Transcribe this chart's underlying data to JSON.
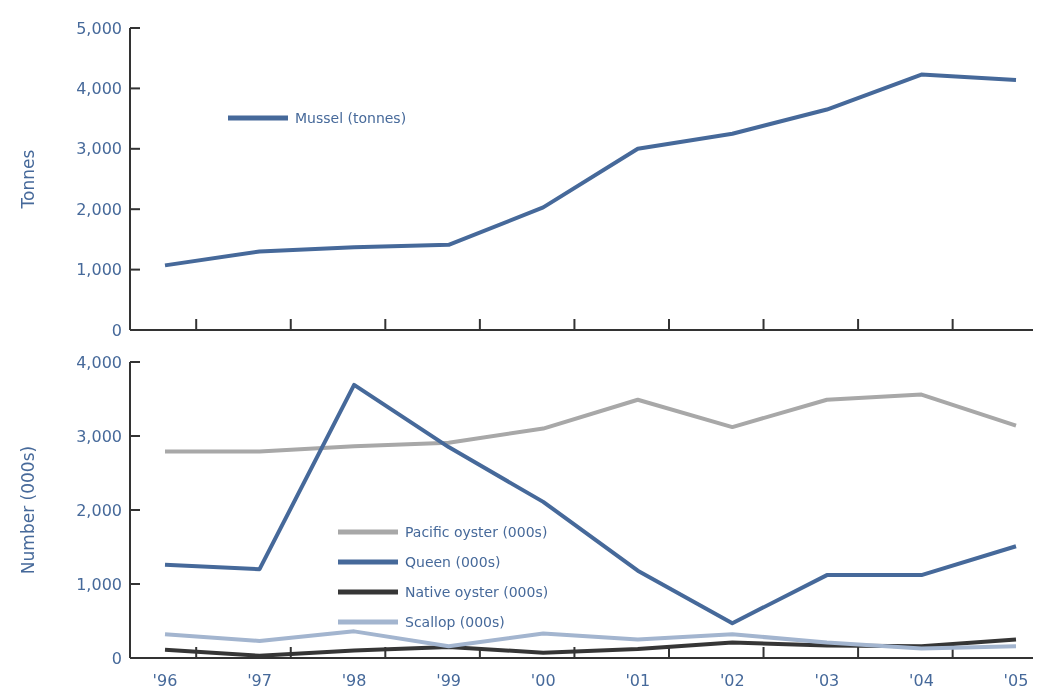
{
  "chart_data": [
    {
      "type": "line",
      "ylabel": "Tonnes",
      "categories": [
        null,
        null,
        null,
        null,
        null,
        null,
        null,
        null,
        null,
        null
      ],
      "ylim": [
        0,
        5000
      ],
      "yticks": [
        {
          "value": 0,
          "label": "0"
        },
        {
          "value": 1000,
          "label": "1,000"
        },
        {
          "value": 2000,
          "label": "2,000"
        },
        {
          "value": 3000,
          "label": "3,000"
        },
        {
          "value": 4000,
          "label": "4,000"
        },
        {
          "value": 5000,
          "label": "5,000"
        }
      ],
      "tick_labels": "y",
      "legend": "top left",
      "grid": false,
      "series": [
        {
          "name": "Mussel (tonnes)",
          "color": "#46699a",
          "values": [
            1070,
            1300,
            1370,
            1410,
            2030,
            3000,
            3250,
            3650,
            4230,
            4140
          ]
        }
      ]
    },
    {
      "type": "line",
      "ylabel": "Number (000s)",
      "categories": [
        "'96",
        "'97",
        "'98",
        "'99",
        "'00",
        "'01",
        "'02",
        "'03",
        "'04",
        "'05"
      ],
      "ylim": [
        0,
        4000
      ],
      "yticks": [
        {
          "value": 0,
          "label": "0"
        },
        {
          "value": 1000,
          "label": "1,000"
        },
        {
          "value": 2000,
          "label": "2,000"
        },
        {
          "value": 3000,
          "label": "3,000"
        },
        {
          "value": 4000,
          "label": "4,000"
        }
      ],
      "legend": "bottom left",
      "grid": false,
      "series": [
        {
          "name": "Pacific oyster (000s)",
          "color": "#a8a8a8",
          "values": [
            2790,
            2790,
            2860,
            2910,
            3100,
            3490,
            3120,
            3490,
            3560,
            3140
          ]
        },
        {
          "name": "Queen (000s)",
          "color": "#46699a",
          "values": [
            1260,
            1200,
            3690,
            2850,
            2110,
            1180,
            470,
            1120,
            1120,
            1510
          ]
        },
        {
          "name": "Native oyster (000s)",
          "color": "#363636",
          "values": [
            110,
            30,
            100,
            150,
            70,
            120,
            210,
            170,
            160,
            250
          ]
        },
        {
          "name": "Scallop (000s)",
          "color": "#a3b5cf",
          "values": [
            320,
            230,
            360,
            160,
            330,
            250,
            320,
            210,
            130,
            160
          ]
        }
      ]
    }
  ]
}
